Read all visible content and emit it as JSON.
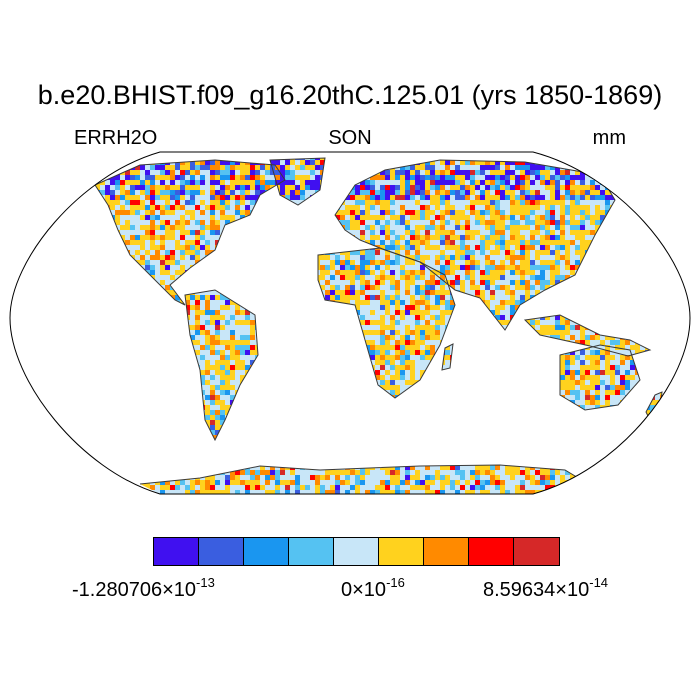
{
  "title": "b.e20.BHIST.f09_g16.20thC.125.01 (yrs 1850-1869)",
  "subtitle_left": "ERRH2O",
  "subtitle_center": "SON",
  "subtitle_right": "mm",
  "projection": "Robinson",
  "colorbar": {
    "colors": [
      "#4010f0",
      "#3a5ee0",
      "#1a96f0",
      "#55c2f2",
      "#c8e6f8",
      "#ffd21e",
      "#ff8a00",
      "#ff0000",
      "#d62828"
    ],
    "min_label": {
      "mantissa": "-1.280706",
      "times": "×10",
      "exponent": "-13"
    },
    "mid_label": {
      "mantissa": "0",
      "times": "×10",
      "exponent": "-16"
    },
    "max_label": {
      "mantissa": "8.59634",
      "times": "×10",
      "exponent": "-14"
    }
  },
  "map_colors": {
    "land_outline": "#3a3a3a",
    "border": "#000000",
    "ocean": "#ffffff"
  }
}
